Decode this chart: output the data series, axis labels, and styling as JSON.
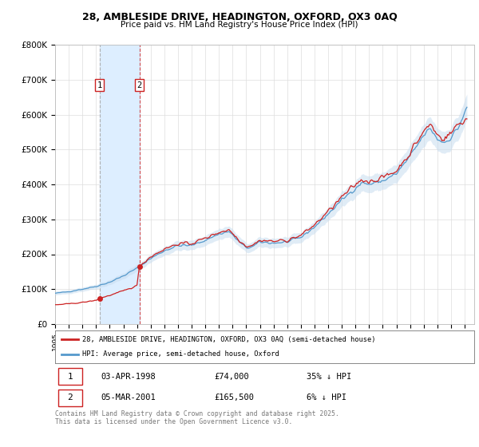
{
  "title_line1": "28, AMBLESIDE DRIVE, HEADINGTON, OXFORD, OX3 0AQ",
  "title_line2": "Price paid vs. HM Land Registry's House Price Index (HPI)",
  "ylim": [
    0,
    800000
  ],
  "yticks": [
    0,
    100000,
    200000,
    300000,
    400000,
    500000,
    600000,
    700000,
    800000
  ],
  "ytick_labels": [
    "£0",
    "£100K",
    "£200K",
    "£300K",
    "£400K",
    "£500K",
    "£600K",
    "£700K",
    "£800K"
  ],
  "xlim_start": 1995.0,
  "xlim_end": 2025.7,
  "purchase1_date": 1998.25,
  "purchase1_price": 74000,
  "purchase2_date": 2001.17,
  "purchase2_price": 165500,
  "red_line_color": "#cc2222",
  "blue_line_color": "#5599cc",
  "blue_fill_color": "#c8ddf0",
  "span_color": "#ddeeff",
  "legend_line1": "28, AMBLESIDE DRIVE, HEADINGTON, OXFORD, OX3 0AQ (semi-detached house)",
  "legend_line2": "HPI: Average price, semi-detached house, Oxford",
  "table_row1": [
    "1",
    "03-APR-1998",
    "£74,000",
    "35% ↓ HPI"
  ],
  "table_row2": [
    "2",
    "05-MAR-2001",
    "£165,500",
    "6% ↓ HPI"
  ],
  "footnote": "Contains HM Land Registry data © Crown copyright and database right 2025.\nThis data is licensed under the Open Government Licence v3.0.",
  "background_color": "#f8f8f8",
  "grid_color": "#dddddd"
}
